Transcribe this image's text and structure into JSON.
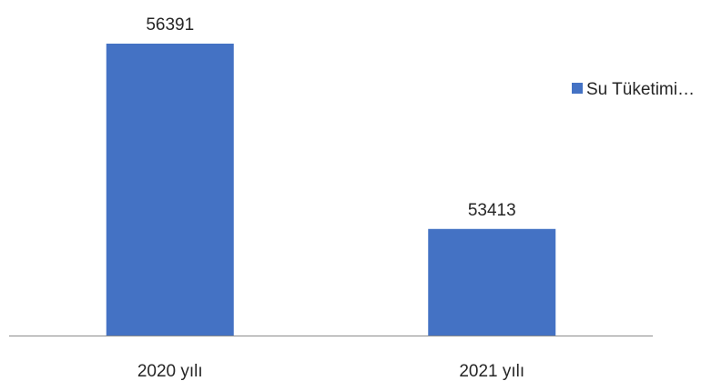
{
  "chart_data": {
    "type": "bar",
    "title": "",
    "xlabel": "",
    "ylabel": "",
    "categories": [
      "2020 yılı",
      "2021 yılı"
    ],
    "series": [
      {
        "name": "Su Tüketimi…",
        "values": [
          56391,
          53413
        ],
        "color": "#4472C4"
      }
    ],
    "data_labels": [
      "56391",
      "53413"
    ],
    "ylim": [
      51700,
      56800
    ],
    "y_axis_visible": false,
    "grid": false,
    "legend": {
      "position": "right",
      "entries": [
        "Su Tüketimi…"
      ]
    }
  }
}
